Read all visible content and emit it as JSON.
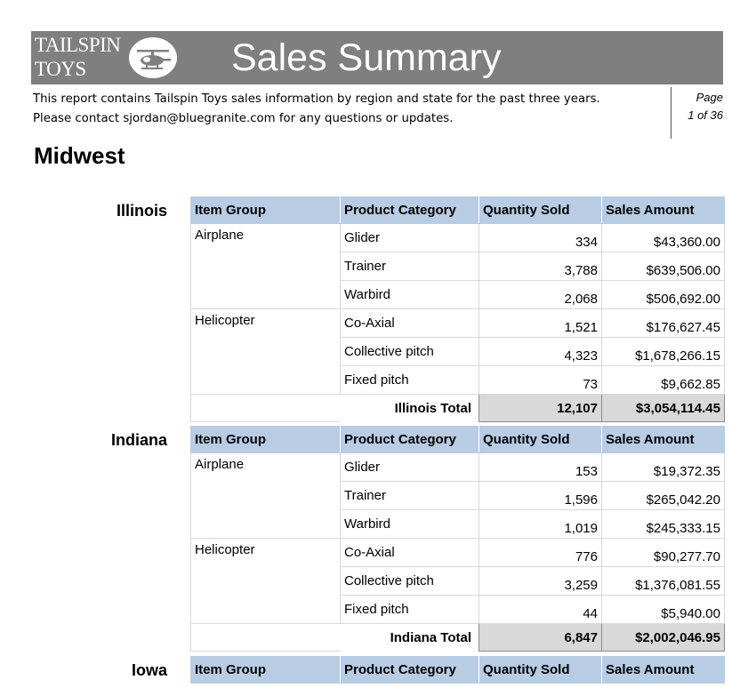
{
  "header": {
    "logo_line1": "TAILSPIN",
    "logo_line2": "TOYS",
    "logo_icon": "helicopter-icon",
    "title": "Sales Summary",
    "banner_color": "#7f7f7f"
  },
  "description": {
    "line1": "This report contains Tailspin Toys sales information by region and state for the past three years.",
    "line2": "Please contact sjordan@bluegranite.com for any questions or updates."
  },
  "page": {
    "label": "Page",
    "of": "1 of 36"
  },
  "region": "Midwest",
  "columns": [
    "Item Group",
    "Product Category",
    "Quantity Sold",
    "Sales Amount"
  ],
  "states": [
    {
      "name": "Illinois",
      "groups": [
        {
          "group": "Airplane",
          "rows": [
            {
              "category": "Glider",
              "qty": "334",
              "amount": "$43,360.00"
            },
            {
              "category": "Trainer",
              "qty": "3,788",
              "amount": "$639,506.00"
            },
            {
              "category": "Warbird",
              "qty": "2,068",
              "amount": "$506,692.00"
            }
          ]
        },
        {
          "group": "Helicopter",
          "rows": [
            {
              "category": "Co-Axial",
              "qty": "1,521",
              "amount": "$176,627.45"
            },
            {
              "category": "Collective pitch",
              "qty": "4,323",
              "amount": "$1,678,266.15"
            },
            {
              "category": "Fixed pitch",
              "qty": "73",
              "amount": "$9,662.85"
            }
          ]
        }
      ],
      "total_label": "Illinois Total",
      "total_qty": "12,107",
      "total_amount": "$3,054,114.45"
    },
    {
      "name": "Indiana",
      "groups": [
        {
          "group": "Airplane",
          "rows": [
            {
              "category": "Glider",
              "qty": "153",
              "amount": "$19,372.35"
            },
            {
              "category": "Trainer",
              "qty": "1,596",
              "amount": "$265,042.20"
            },
            {
              "category": "Warbird",
              "qty": "1,019",
              "amount": "$245,333.15"
            }
          ]
        },
        {
          "group": "Helicopter",
          "rows": [
            {
              "category": "Co-Axial",
              "qty": "776",
              "amount": "$90,277.70"
            },
            {
              "category": "Collective pitch",
              "qty": "3,259",
              "amount": "$1,376,081.55"
            },
            {
              "category": "Fixed pitch",
              "qty": "44",
              "amount": "$5,940.00"
            }
          ]
        }
      ],
      "total_label": "Indiana Total",
      "total_qty": "6,847",
      "total_amount": "$2,002,046.95"
    },
    {
      "name": "Iowa"
    }
  ]
}
